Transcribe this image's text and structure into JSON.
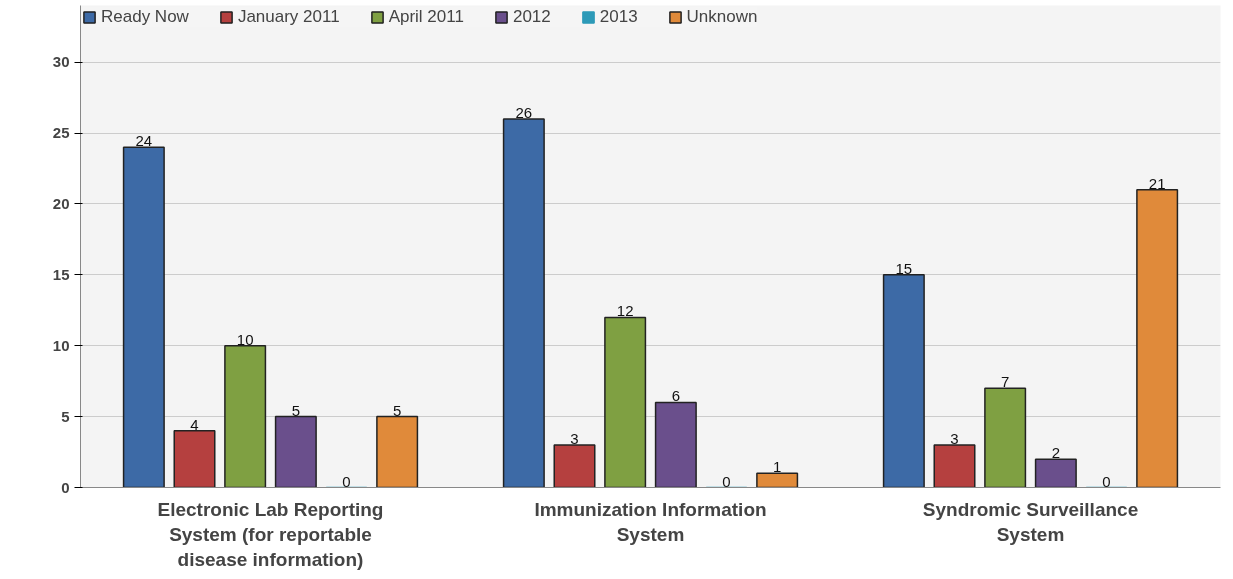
{
  "chart_data": {
    "type": "bar",
    "categories": [
      "Electronic Lab Reporting System (for reportable disease information)",
      "Immunization Information System",
      "Syndromic Surveillance System"
    ],
    "series": [
      {
        "name": "Ready Now",
        "color": "#3d6aa6",
        "values": [
          24,
          26,
          15
        ]
      },
      {
        "name": "January 2011",
        "color": "#b5403f",
        "values": [
          4,
          3,
          3
        ]
      },
      {
        "name": "April 2011",
        "color": "#7fa042",
        "values": [
          10,
          12,
          7
        ]
      },
      {
        "name": "2012",
        "color": "#6a4f8c",
        "values": [
          5,
          6,
          2
        ]
      },
      {
        "name": "2013",
        "color": "#2d9ab8",
        "values": [
          0,
          0,
          0
        ]
      },
      {
        "name": "Unknown",
        "color": "#e08a3a",
        "values": [
          5,
          1,
          21
        ]
      }
    ],
    "ylim": [
      0,
      34
    ],
    "yticks": [
      0,
      5,
      10,
      15,
      20,
      25,
      30
    ],
    "grid": "y",
    "legend": "top left",
    "data_labels": true
  }
}
